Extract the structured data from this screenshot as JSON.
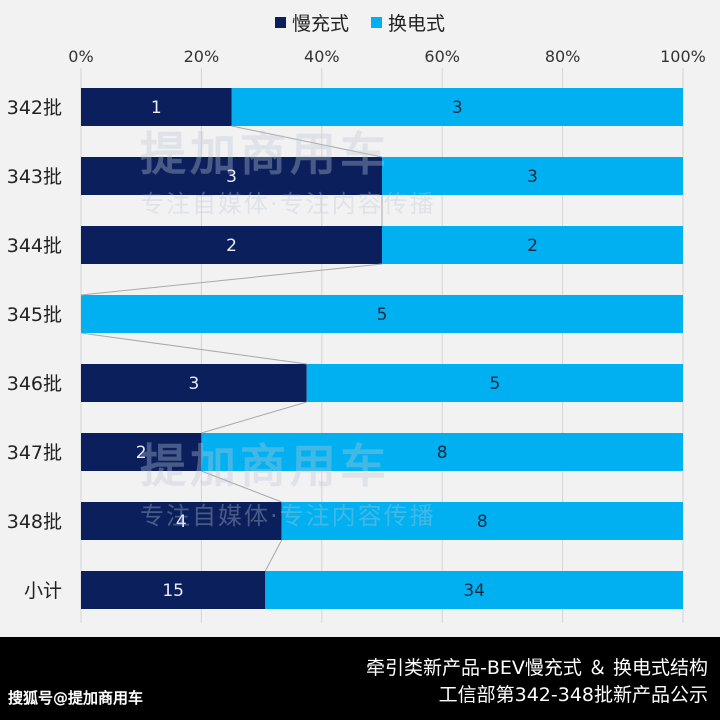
{
  "chart_data": {
    "type": "bar",
    "orientation": "horizontal",
    "stacking": "percent",
    "categories": [
      "342批",
      "343批",
      "344批",
      "345批",
      "346批",
      "347批",
      "348批",
      "小计"
    ],
    "series": [
      {
        "name": "慢充式",
        "values": [
          1,
          3,
          2,
          0,
          3,
          2,
          4,
          15
        ],
        "color": "#0a1f5c"
      },
      {
        "name": "换电式",
        "values": [
          3,
          3,
          2,
          5,
          5,
          8,
          8,
          34
        ],
        "color": "#00b0f0"
      }
    ],
    "xlim": [
      0,
      100
    ],
    "x_ticks": [
      "0%",
      "20%",
      "40%",
      "60%",
      "80%",
      "100%"
    ],
    "legend_position": "top",
    "grid": true,
    "series_connector_lines": true
  },
  "footer": {
    "title_line1": "牵引类新产品-BEV慢充式 ＆ 换电式结构",
    "title_line2": "工信部第342-348批新产品公示",
    "source": "搜狐号@提加商用车"
  },
  "watermark": {
    "title": "提加商用车",
    "subtitle": "专注自媒体·专注内容传播"
  }
}
